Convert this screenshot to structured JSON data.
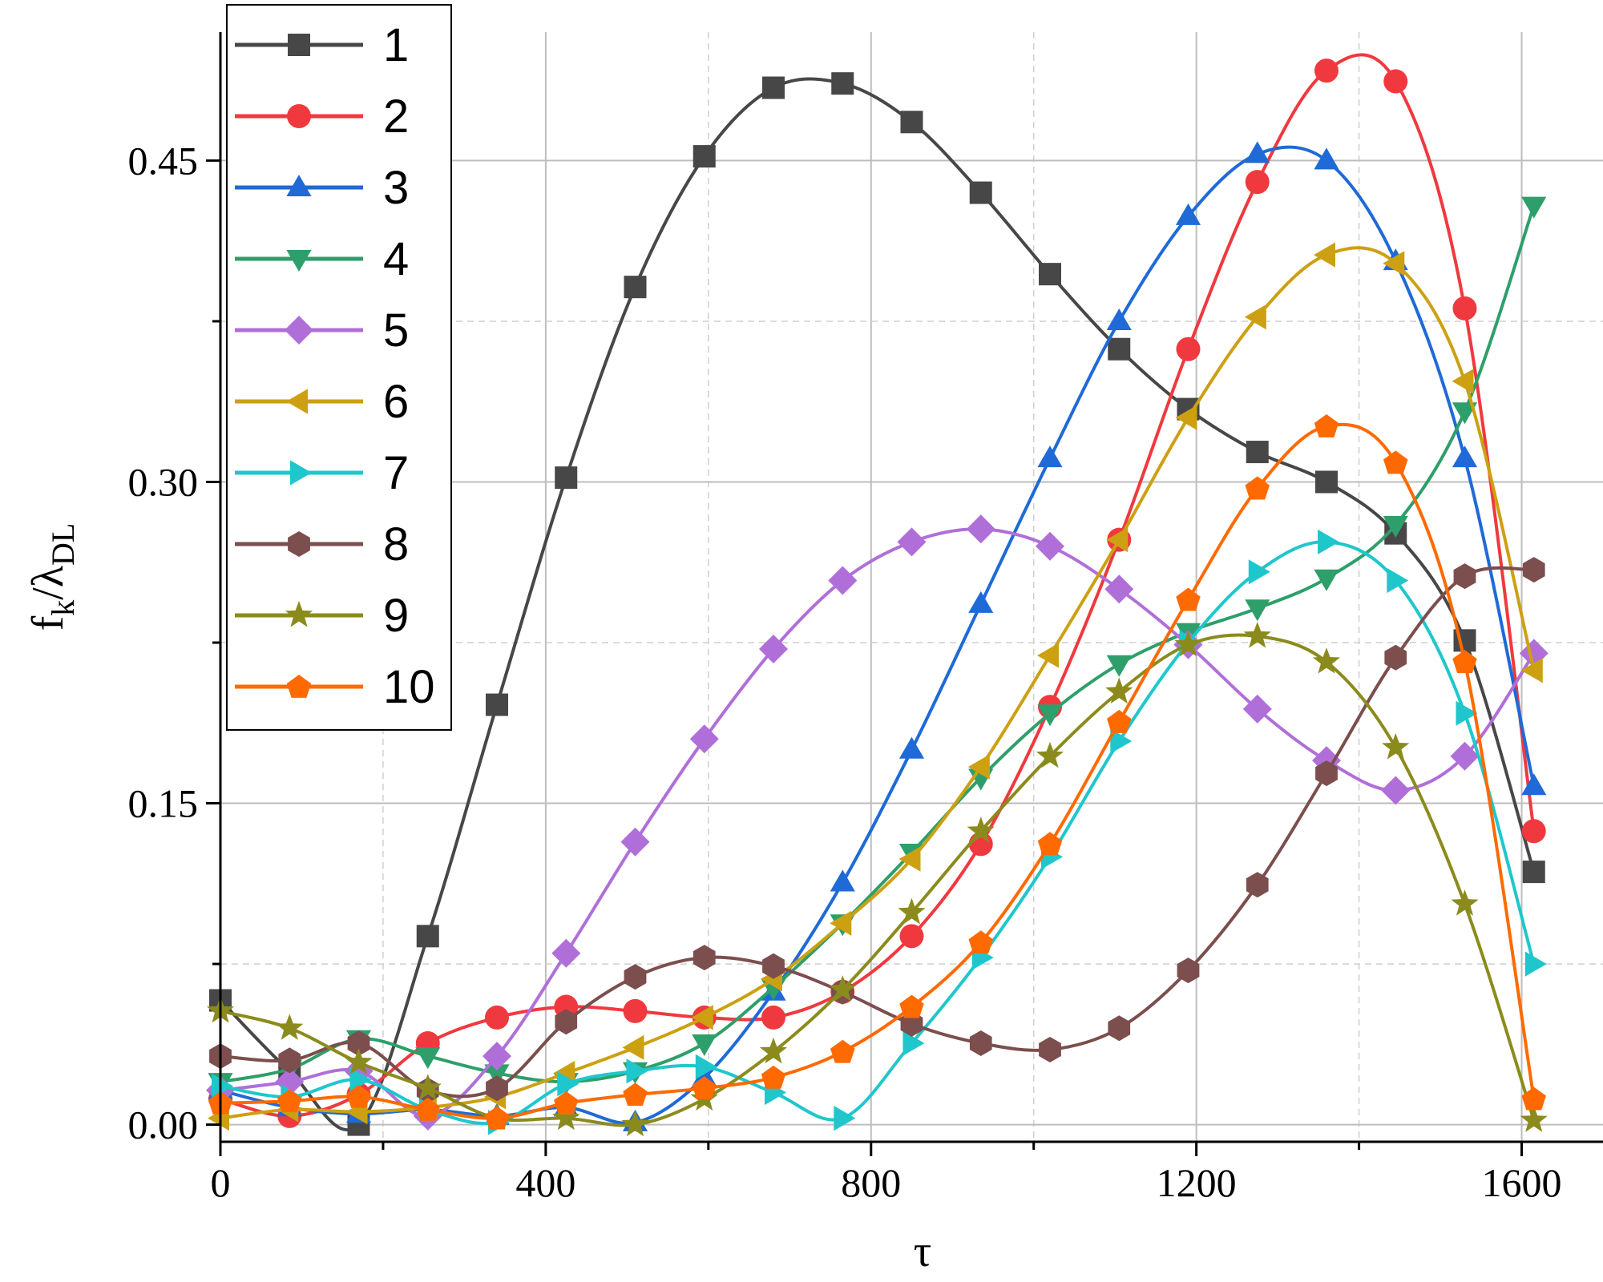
{
  "chart_data": {
    "type": "line",
    "xlabel": "τ",
    "ylabel_main": "f",
    "ylabel_sub1": "k",
    "ylabel_sep": "/λ",
    "ylabel_sub2": "DL",
    "xlim": [
      0,
      1700
    ],
    "ylim": [
      -0.008,
      0.51
    ],
    "xticks": [
      0,
      400,
      800,
      1200,
      1600
    ],
    "xtick_labels": [
      "0",
      "400",
      "800",
      "1200",
      "1600"
    ],
    "yticks": [
      0,
      0.15,
      0.3,
      0.45
    ],
    "ytick_labels": [
      "0.00",
      "0.15",
      "0.30",
      "0.45"
    ],
    "grid": true,
    "legend_position": "top-left",
    "x": [
      0,
      85,
      170,
      255,
      340,
      425,
      510,
      595,
      680,
      765,
      850,
      935,
      1020,
      1105,
      1190,
      1275,
      1360,
      1445,
      1530,
      1615
    ],
    "series": [
      {
        "name": "1",
        "color": "#474747",
        "marker": "square",
        "values": [
          0.058,
          0.025,
          0.0,
          0.088,
          0.196,
          0.302,
          0.391,
          0.452,
          0.484,
          0.486,
          0.468,
          0.435,
          0.397,
          0.362,
          0.334,
          0.314,
          0.3,
          0.276,
          0.226,
          0.118
        ]
      },
      {
        "name": "2",
        "color": "#f0393e",
        "marker": "circle",
        "values": [
          0.012,
          0.004,
          0.014,
          0.038,
          0.05,
          0.055,
          0.053,
          0.05,
          0.05,
          0.062,
          0.088,
          0.131,
          0.195,
          0.273,
          0.362,
          0.44,
          0.492,
          0.487,
          0.381,
          0.137
        ]
      },
      {
        "name": "3",
        "color": "#1f6ad6",
        "marker": "triangle-up",
        "values": [
          0.016,
          0.008,
          0.005,
          0.007,
          0.004,
          0.008,
          0.001,
          0.022,
          0.062,
          0.113,
          0.175,
          0.243,
          0.311,
          0.375,
          0.424,
          0.453,
          0.45,
          0.403,
          0.311,
          0.158
        ]
      },
      {
        "name": "4",
        "color": "#2e9f6a",
        "marker": "triangle-down",
        "values": [
          0.02,
          0.026,
          0.04,
          0.032,
          0.024,
          0.02,
          0.025,
          0.038,
          0.064,
          0.094,
          0.127,
          0.162,
          0.192,
          0.215,
          0.23,
          0.241,
          0.255,
          0.28,
          0.333,
          0.429
        ]
      },
      {
        "name": "5",
        "color": "#b06fd8",
        "marker": "diamond",
        "values": [
          0.016,
          0.02,
          0.025,
          0.004,
          0.032,
          0.08,
          0.132,
          0.18,
          0.222,
          0.254,
          0.272,
          0.278,
          0.27,
          0.25,
          0.224,
          0.194,
          0.17,
          0.156,
          0.172,
          0.22
        ]
      },
      {
        "name": "6",
        "color": "#cda012",
        "marker": "triangle-left",
        "values": [
          0.003,
          0.007,
          0.006,
          0.008,
          0.013,
          0.024,
          0.036,
          0.05,
          0.068,
          0.094,
          0.124,
          0.167,
          0.219,
          0.273,
          0.33,
          0.377,
          0.406,
          0.402,
          0.347,
          0.212
        ]
      },
      {
        "name": "7",
        "color": "#1fc7cc",
        "marker": "triangle-right",
        "values": [
          0.018,
          0.013,
          0.021,
          0.007,
          0.001,
          0.019,
          0.025,
          0.027,
          0.015,
          0.003,
          0.038,
          0.078,
          0.125,
          0.179,
          0.225,
          0.258,
          0.272,
          0.254,
          0.192,
          0.075
        ]
      },
      {
        "name": "8",
        "color": "#7c4e4e",
        "marker": "hexagon",
        "values": [
          0.032,
          0.03,
          0.038,
          0.016,
          0.017,
          0.048,
          0.069,
          0.078,
          0.074,
          0.062,
          0.047,
          0.038,
          0.035,
          0.045,
          0.072,
          0.112,
          0.164,
          0.218,
          0.256,
          0.259
        ]
      },
      {
        "name": "9",
        "color": "#8b8b1d",
        "marker": "star",
        "values": [
          0.053,
          0.045,
          0.029,
          0.017,
          0.003,
          0.003,
          0.0,
          0.012,
          0.034,
          0.063,
          0.099,
          0.137,
          0.172,
          0.202,
          0.224,
          0.228,
          0.216,
          0.176,
          0.103,
          0.002
        ]
      },
      {
        "name": "10",
        "color": "#ff6a00",
        "marker": "pentagon",
        "values": [
          0.01,
          0.011,
          0.013,
          0.007,
          0.003,
          0.01,
          0.014,
          0.017,
          0.022,
          0.034,
          0.055,
          0.085,
          0.131,
          0.188,
          0.245,
          0.297,
          0.326,
          0.309,
          0.216,
          0.012
        ]
      }
    ]
  }
}
